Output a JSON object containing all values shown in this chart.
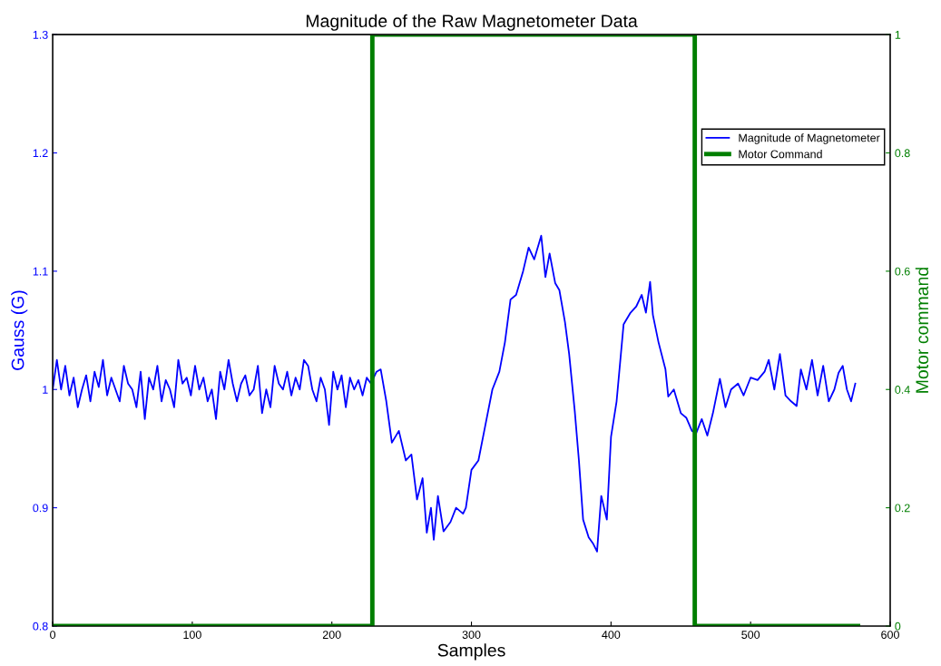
{
  "chart_data": {
    "type": "line",
    "title": "Magnitude of the Raw Magnetometer Data",
    "xlabel": "Samples",
    "ylabel": "Gauss (G)",
    "y2label": "Motor command",
    "xlim": [
      0,
      600
    ],
    "xticks": [
      0,
      100,
      200,
      300,
      400,
      500,
      600
    ],
    "ylim": [
      0.8,
      1.3
    ],
    "yticks": [
      0.8,
      0.9,
      1,
      1.1,
      1.2,
      1.3
    ],
    "y2lim": [
      0,
      1
    ],
    "y2ticks": [
      0,
      0.2,
      0.4,
      0.6,
      0.8,
      1
    ],
    "grid": false,
    "legend": "top right",
    "marker": "none",
    "line_style": "solid",
    "series": [
      {
        "name": "Magnitude of Magnetometer",
        "color": "#0000ff",
        "axis": "y",
        "x": [
          0,
          3,
          6,
          9,
          12,
          15,
          18,
          21,
          24,
          27,
          30,
          33,
          36,
          39,
          42,
          45,
          48,
          51,
          54,
          57,
          60,
          63,
          66,
          69,
          72,
          75,
          78,
          81,
          84,
          87,
          90,
          93,
          96,
          99,
          102,
          105,
          108,
          111,
          114,
          117,
          120,
          123,
          126,
          129,
          132,
          135,
          138,
          141,
          144,
          147,
          150,
          153,
          156,
          159,
          162,
          165,
          168,
          171,
          174,
          177,
          180,
          183,
          186,
          189,
          192,
          195,
          198,
          201,
          204,
          207,
          210,
          213,
          216,
          219,
          222,
          225,
          228,
          232,
          235,
          239,
          243,
          248,
          253,
          257,
          261,
          265,
          268,
          271,
          273,
          276,
          280,
          285,
          289,
          294,
          296,
          300,
          305,
          310,
          315,
          320,
          324,
          328,
          332,
          337,
          341,
          345,
          350,
          353,
          356,
          360,
          363,
          367,
          370,
          374,
          377,
          380,
          384,
          387,
          390,
          393,
          397,
          400,
          404,
          409,
          414,
          418,
          422,
          425,
          428,
          430,
          434,
          439,
          441,
          445,
          450,
          454,
          458,
          461,
          465,
          469,
          473,
          478,
          482,
          486,
          491,
          495,
          500,
          505,
          510,
          513,
          517,
          521,
          525,
          529,
          533,
          536,
          540,
          544,
          548,
          552,
          556,
          560,
          563,
          566,
          569,
          572,
          575
        ],
        "values": [
          1.0,
          1.025,
          1.0,
          1.02,
          0.995,
          1.01,
          0.985,
          1.0,
          1.012,
          0.99,
          1.015,
          1.002,
          1.025,
          0.995,
          1.01,
          1.0,
          0.99,
          1.02,
          1.005,
          1.0,
          0.985,
          1.015,
          0.975,
          1.01,
          1.0,
          1.02,
          0.99,
          1.008,
          1.0,
          0.985,
          1.025,
          1.005,
          1.01,
          0.995,
          1.02,
          1.0,
          1.01,
          0.99,
          1.0,
          0.975,
          1.015,
          1.0,
          1.025,
          1.005,
          0.99,
          1.005,
          1.012,
          0.995,
          1.0,
          1.02,
          0.98,
          1.0,
          0.985,
          1.02,
          1.005,
          1.0,
          1.015,
          0.995,
          1.01,
          1.0,
          1.025,
          1.02,
          1.0,
          0.99,
          1.01,
          1.0,
          0.97,
          1.015,
          1.0,
          1.012,
          0.985,
          1.01,
          1.0,
          1.008,
          0.995,
          1.01,
          1.005,
          1.015,
          1.017,
          0.99,
          0.955,
          0.965,
          0.94,
          0.945,
          0.907,
          0.925,
          0.879,
          0.9,
          0.873,
          0.91,
          0.88,
          0.888,
          0.9,
          0.895,
          0.9,
          0.932,
          0.94,
          0.97,
          1.0,
          1.015,
          1.04,
          1.076,
          1.08,
          1.1,
          1.12,
          1.11,
          1.13,
          1.095,
          1.115,
          1.09,
          1.084,
          1.057,
          1.03,
          0.982,
          0.94,
          0.89,
          0.875,
          0.87,
          0.863,
          0.91,
          0.89,
          0.96,
          0.99,
          1.055,
          1.065,
          1.07,
          1.08,
          1.065,
          1.091,
          1.063,
          1.04,
          1.017,
          0.994,
          1.0,
          0.98,
          0.976,
          0.965,
          0.963,
          0.975,
          0.961,
          0.98,
          1.009,
          0.985,
          1.0,
          1.005,
          0.995,
          1.01,
          1.008,
          1.015,
          1.025,
          1.0,
          1.03,
          0.995,
          0.99,
          0.986,
          1.017,
          1.0,
          1.025,
          0.995,
          1.02,
          0.99,
          1.0,
          1.014,
          1.02,
          1.0,
          0.99,
          1.005
        ]
      },
      {
        "name": "Motor Command",
        "color": "#007f00",
        "axis": "y2",
        "x": [
          0,
          229,
          229,
          460,
          460,
          577
        ],
        "values": [
          0,
          0,
          1,
          1,
          0,
          0
        ]
      }
    ]
  }
}
